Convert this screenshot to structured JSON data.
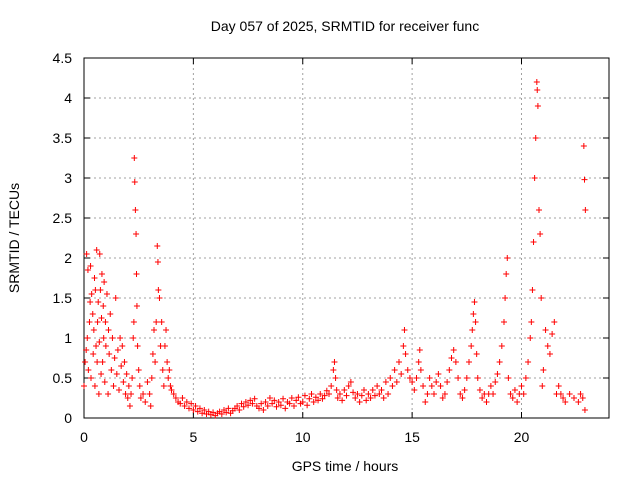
{
  "chart_data": {
    "type": "scatter",
    "title": "Day 057 of 2025, SRMTID for receiver func",
    "xlabel": "GPS time / hours",
    "ylabel": "SRMTID / TECUs",
    "xlim": [
      0,
      24
    ],
    "ylim": [
      0,
      4.5
    ],
    "xticks": [
      0,
      5,
      10,
      15,
      20
    ],
    "yticks": [
      0,
      0.5,
      1,
      1.5,
      2,
      2.5,
      3,
      3.5,
      4,
      4.5
    ],
    "xtick_labels": [
      "0",
      "5",
      "10",
      "15",
      "20"
    ],
    "ytick_labels": [
      "0",
      "0.5",
      "1",
      "1.5",
      "2",
      "2.5",
      "3",
      "3.5",
      "4",
      "4.5"
    ],
    "grid": true,
    "marker": "+",
    "marker_color": "#ff0000",
    "series": [
      {
        "name": "SRMTID",
        "points": [
          [
            0.0,
            0.4
          ],
          [
            0.05,
            0.7
          ],
          [
            0.1,
            0.85
          ],
          [
            0.12,
            2.05
          ],
          [
            0.15,
            1.0
          ],
          [
            0.18,
            1.85
          ],
          [
            0.2,
            0.6
          ],
          [
            0.25,
            1.2
          ],
          [
            0.28,
            1.45
          ],
          [
            0.3,
            1.9
          ],
          [
            0.32,
            0.5
          ],
          [
            0.35,
            1.55
          ],
          [
            0.4,
            1.3
          ],
          [
            0.42,
            0.8
          ],
          [
            0.45,
            1.1
          ],
          [
            0.48,
            1.75
          ],
          [
            0.5,
            0.4
          ],
          [
            0.52,
            1.6
          ],
          [
            0.55,
            0.9
          ],
          [
            0.58,
            2.1
          ],
          [
            0.6,
            0.7
          ],
          [
            0.62,
            1.2
          ],
          [
            0.65,
            1.45
          ],
          [
            0.68,
            0.3
          ],
          [
            0.7,
            0.95
          ],
          [
            0.72,
            2.05
          ],
          [
            0.75,
            1.6
          ],
          [
            0.78,
            0.55
          ],
          [
            0.8,
            1.25
          ],
          [
            0.82,
            1.8
          ],
          [
            0.85,
            0.7
          ],
          [
            0.88,
            1.4
          ],
          [
            0.9,
            1.0
          ],
          [
            0.92,
            1.7
          ],
          [
            0.95,
            0.45
          ],
          [
            0.98,
            1.2
          ],
          [
            1.0,
            0.9
          ],
          [
            1.05,
            1.55
          ],
          [
            1.1,
            0.3
          ],
          [
            1.12,
            1.1
          ],
          [
            1.15,
            0.8
          ],
          [
            1.2,
            1.3
          ],
          [
            1.25,
            0.6
          ],
          [
            1.3,
            1.0
          ],
          [
            1.35,
            0.4
          ],
          [
            1.4,
            0.75
          ],
          [
            1.45,
            1.5
          ],
          [
            1.5,
            0.55
          ],
          [
            1.55,
            0.85
          ],
          [
            1.6,
            0.35
          ],
          [
            1.65,
            1.0
          ],
          [
            1.7,
            0.65
          ],
          [
            1.75,
            0.9
          ],
          [
            1.8,
            0.45
          ],
          [
            1.85,
            0.7
          ],
          [
            1.9,
            0.3
          ],
          [
            1.95,
            0.55
          ],
          [
            2.0,
            0.25
          ],
          [
            2.05,
            0.4
          ],
          [
            2.1,
            0.15
          ],
          [
            2.15,
            0.3
          ],
          [
            2.2,
            0.5
          ],
          [
            2.25,
            1.0
          ],
          [
            2.28,
            1.2
          ],
          [
            2.3,
            3.25
          ],
          [
            2.32,
            2.95
          ],
          [
            2.35,
            2.6
          ],
          [
            2.38,
            2.3
          ],
          [
            2.4,
            1.8
          ],
          [
            2.42,
            1.4
          ],
          [
            2.45,
            0.9
          ],
          [
            2.5,
            0.6
          ],
          [
            2.55,
            0.4
          ],
          [
            2.6,
            0.25
          ],
          [
            2.7,
            0.3
          ],
          [
            2.8,
            0.2
          ],
          [
            2.9,
            0.45
          ],
          [
            3.0,
            0.3
          ],
          [
            3.05,
            0.15
          ],
          [
            3.1,
            0.5
          ],
          [
            3.15,
            0.8
          ],
          [
            3.2,
            1.1
          ],
          [
            3.25,
            0.7
          ],
          [
            3.3,
            1.2
          ],
          [
            3.35,
            2.15
          ],
          [
            3.38,
            1.95
          ],
          [
            3.4,
            1.6
          ],
          [
            3.45,
            1.5
          ],
          [
            3.5,
            0.9
          ],
          [
            3.55,
            1.2
          ],
          [
            3.6,
            0.6
          ],
          [
            3.65,
            0.4
          ],
          [
            3.7,
            0.9
          ],
          [
            3.75,
            1.1
          ],
          [
            3.8,
            0.7
          ],
          [
            3.85,
            0.5
          ],
          [
            3.9,
            0.6
          ],
          [
            3.95,
            0.4
          ],
          [
            4.0,
            0.35
          ],
          [
            4.1,
            0.3
          ],
          [
            4.2,
            0.25
          ],
          [
            4.3,
            0.2
          ],
          [
            4.4,
            0.18
          ],
          [
            4.5,
            0.25
          ],
          [
            4.6,
            0.15
          ],
          [
            4.7,
            0.2
          ],
          [
            4.8,
            0.12
          ],
          [
            4.9,
            0.18
          ],
          [
            5.0,
            0.1
          ],
          [
            5.1,
            0.15
          ],
          [
            5.2,
            0.08
          ],
          [
            5.3,
            0.12
          ],
          [
            5.4,
            0.06
          ],
          [
            5.5,
            0.1
          ],
          [
            5.6,
            0.05
          ],
          [
            5.7,
            0.08
          ],
          [
            5.8,
            0.04
          ],
          [
            5.9,
            0.07
          ],
          [
            6.0,
            0.03
          ],
          [
            6.1,
            0.06
          ],
          [
            6.2,
            0.08
          ],
          [
            6.3,
            0.05
          ],
          [
            6.4,
            0.1
          ],
          [
            6.5,
            0.07
          ],
          [
            6.6,
            0.12
          ],
          [
            6.7,
            0.06
          ],
          [
            6.8,
            0.09
          ],
          [
            6.9,
            0.12
          ],
          [
            7.0,
            0.15
          ],
          [
            7.1,
            0.1
          ],
          [
            7.2,
            0.18
          ],
          [
            7.3,
            0.14
          ],
          [
            7.4,
            0.2
          ],
          [
            7.5,
            0.16
          ],
          [
            7.6,
            0.22
          ],
          [
            7.7,
            0.18
          ],
          [
            7.8,
            0.24
          ],
          [
            7.9,
            0.15
          ],
          [
            8.0,
            0.12
          ],
          [
            8.1,
            0.18
          ],
          [
            8.2,
            0.1
          ],
          [
            8.3,
            0.2
          ],
          [
            8.4,
            0.15
          ],
          [
            8.5,
            0.25
          ],
          [
            8.6,
            0.18
          ],
          [
            8.7,
            0.22
          ],
          [
            8.8,
            0.14
          ],
          [
            8.9,
            0.2
          ],
          [
            9.0,
            0.16
          ],
          [
            9.1,
            0.24
          ],
          [
            9.2,
            0.12
          ],
          [
            9.3,
            0.2
          ],
          [
            9.4,
            0.18
          ],
          [
            9.5,
            0.25
          ],
          [
            9.6,
            0.15
          ],
          [
            9.7,
            0.22
          ],
          [
            9.8,
            0.26
          ],
          [
            9.9,
            0.18
          ],
          [
            10.0,
            0.2
          ],
          [
            10.1,
            0.28
          ],
          [
            10.2,
            0.16
          ],
          [
            10.3,
            0.24
          ],
          [
            10.4,
            0.3
          ],
          [
            10.5,
            0.2
          ],
          [
            10.6,
            0.26
          ],
          [
            10.7,
            0.22
          ],
          [
            10.8,
            0.3
          ],
          [
            10.9,
            0.24
          ],
          [
            11.0,
            0.28
          ],
          [
            11.1,
            0.34
          ],
          [
            11.2,
            0.3
          ],
          [
            11.3,
            0.4
          ],
          [
            11.4,
            0.6
          ],
          [
            11.45,
            0.7
          ],
          [
            11.5,
            0.5
          ],
          [
            11.55,
            0.35
          ],
          [
            11.6,
            0.25
          ],
          [
            11.7,
            0.3
          ],
          [
            11.8,
            0.22
          ],
          [
            11.9,
            0.35
          ],
          [
            12.0,
            0.28
          ],
          [
            12.1,
            0.4
          ],
          [
            12.2,
            0.45
          ],
          [
            12.3,
            0.32
          ],
          [
            12.4,
            0.25
          ],
          [
            12.5,
            0.3
          ],
          [
            12.6,
            0.2
          ],
          [
            12.7,
            0.28
          ],
          [
            12.8,
            0.35
          ],
          [
            12.9,
            0.22
          ],
          [
            13.0,
            0.3
          ],
          [
            13.1,
            0.25
          ],
          [
            13.2,
            0.35
          ],
          [
            13.3,
            0.28
          ],
          [
            13.4,
            0.4
          ],
          [
            13.5,
            0.3
          ],
          [
            13.6,
            0.35
          ],
          [
            13.7,
            0.25
          ],
          [
            13.8,
            0.45
          ],
          [
            13.9,
            0.3
          ],
          [
            14.0,
            0.5
          ],
          [
            14.1,
            0.4
          ],
          [
            14.2,
            0.6
          ],
          [
            14.3,
            0.45
          ],
          [
            14.4,
            0.7
          ],
          [
            14.5,
            0.55
          ],
          [
            14.6,
            0.9
          ],
          [
            14.65,
            1.1
          ],
          [
            14.7,
            0.8
          ],
          [
            14.8,
            0.6
          ],
          [
            14.9,
            0.5
          ],
          [
            15.0,
            0.45
          ],
          [
            15.1,
            0.35
          ],
          [
            15.2,
            0.5
          ],
          [
            15.3,
            0.7
          ],
          [
            15.35,
            0.85
          ],
          [
            15.4,
            0.6
          ],
          [
            15.5,
            0.4
          ],
          [
            15.6,
            0.2
          ],
          [
            15.7,
            0.3
          ],
          [
            15.8,
            0.5
          ],
          [
            15.9,
            0.4
          ],
          [
            16.0,
            0.3
          ],
          [
            16.1,
            0.45
          ],
          [
            16.2,
            0.55
          ],
          [
            16.3,
            0.4
          ],
          [
            16.4,
            0.25
          ],
          [
            16.5,
            0.3
          ],
          [
            16.6,
            0.45
          ],
          [
            16.7,
            0.6
          ],
          [
            16.8,
            0.75
          ],
          [
            16.9,
            0.85
          ],
          [
            17.0,
            0.7
          ],
          [
            17.1,
            0.5
          ],
          [
            17.2,
            0.3
          ],
          [
            17.3,
            0.25
          ],
          [
            17.4,
            0.35
          ],
          [
            17.5,
            0.5
          ],
          [
            17.6,
            0.7
          ],
          [
            17.7,
            0.9
          ],
          [
            17.75,
            1.1
          ],
          [
            17.8,
            1.3
          ],
          [
            17.85,
            1.45
          ],
          [
            17.9,
            1.2
          ],
          [
            17.95,
            0.8
          ],
          [
            18.0,
            0.5
          ],
          [
            18.1,
            0.35
          ],
          [
            18.2,
            0.25
          ],
          [
            18.3,
            0.3
          ],
          [
            18.4,
            0.2
          ],
          [
            18.5,
            0.3
          ],
          [
            18.6,
            0.4
          ],
          [
            18.7,
            0.3
          ],
          [
            18.8,
            0.45
          ],
          [
            18.9,
            0.55
          ],
          [
            19.0,
            0.7
          ],
          [
            19.1,
            0.9
          ],
          [
            19.2,
            1.2
          ],
          [
            19.25,
            1.5
          ],
          [
            19.3,
            1.8
          ],
          [
            19.35,
            2.0
          ],
          [
            19.4,
            0.5
          ],
          [
            19.5,
            0.3
          ],
          [
            19.6,
            0.25
          ],
          [
            19.7,
            0.35
          ],
          [
            19.8,
            0.2
          ],
          [
            19.9,
            0.3
          ],
          [
            20.0,
            0.4
          ],
          [
            20.1,
            0.3
          ],
          [
            20.2,
            0.5
          ],
          [
            20.3,
            0.7
          ],
          [
            20.4,
            1.0
          ],
          [
            20.45,
            1.2
          ],
          [
            20.5,
            1.6
          ],
          [
            20.55,
            2.2
          ],
          [
            20.6,
            3.0
          ],
          [
            20.65,
            3.5
          ],
          [
            20.7,
            4.2
          ],
          [
            20.72,
            4.1
          ],
          [
            20.75,
            3.9
          ],
          [
            20.8,
            2.6
          ],
          [
            20.85,
            2.3
          ],
          [
            20.9,
            1.5
          ],
          [
            20.95,
            0.4
          ],
          [
            21.0,
            0.6
          ],
          [
            21.1,
            1.1
          ],
          [
            21.2,
            0.9
          ],
          [
            21.3,
            0.8
          ],
          [
            21.4,
            1.05
          ],
          [
            21.5,
            1.2
          ],
          [
            21.6,
            0.3
          ],
          [
            21.7,
            0.4
          ],
          [
            21.8,
            0.3
          ],
          [
            21.9,
            0.25
          ],
          [
            22.0,
            0.2
          ],
          [
            22.2,
            0.3
          ],
          [
            22.4,
            0.25
          ],
          [
            22.6,
            0.2
          ],
          [
            22.7,
            0.3
          ],
          [
            22.8,
            0.25
          ],
          [
            22.9,
            0.1
          ],
          [
            22.85,
            3.4
          ],
          [
            22.88,
            2.98
          ],
          [
            22.92,
            2.6
          ]
        ]
      }
    ]
  }
}
